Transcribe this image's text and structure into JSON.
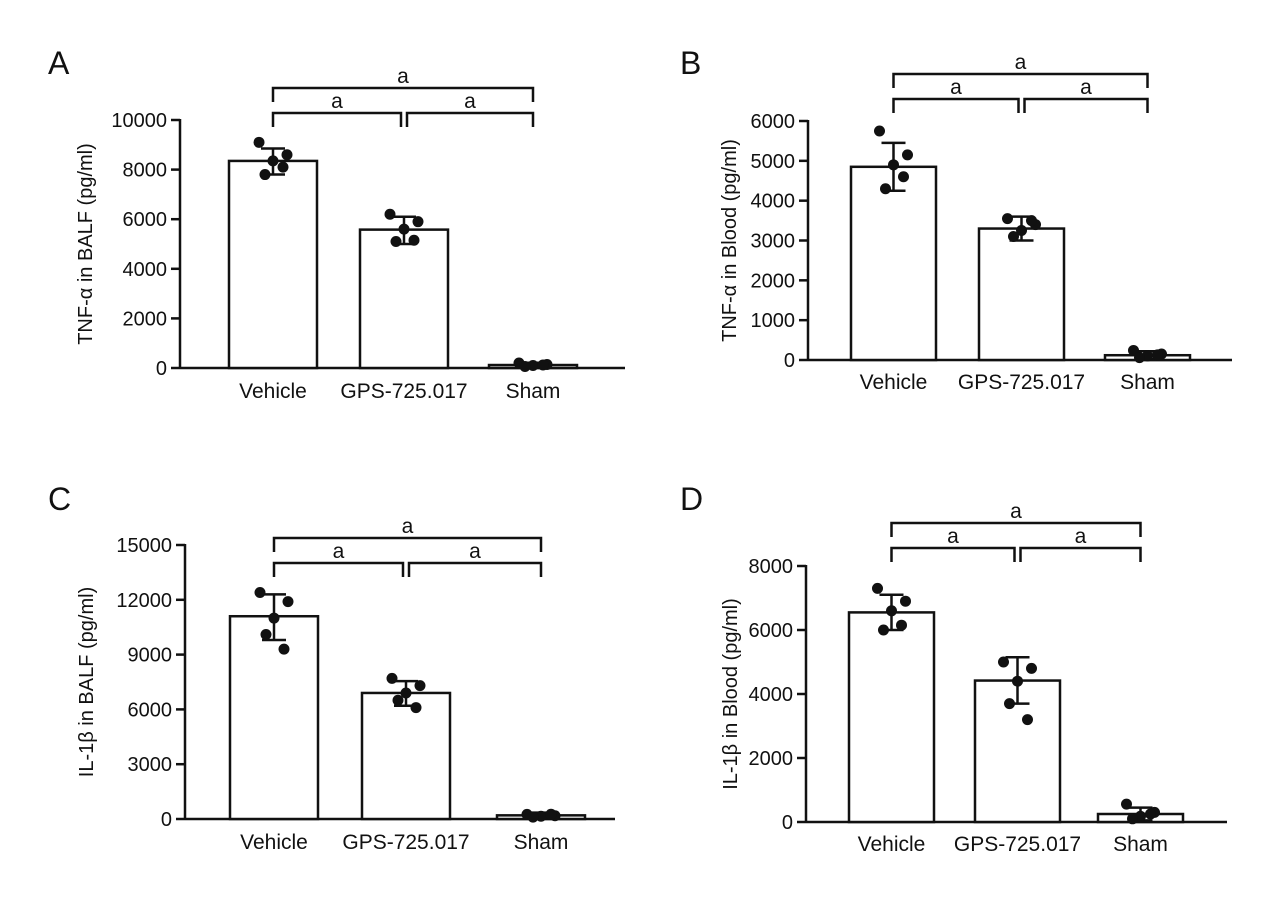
{
  "chart_data": [
    {
      "panel": "A",
      "type": "bar",
      "categories": [
        "Vehicle",
        "GPS-725.017",
        "Sham"
      ],
      "values": [
        8350,
        5580,
        120
      ],
      "error": [
        [
          7800,
          8850
        ],
        [
          5000,
          6100
        ],
        [
          30,
          210
        ]
      ],
      "points": [
        [
          9100,
          8600,
          8350,
          7800,
          8100
        ],
        [
          6200,
          5900,
          5600,
          5100,
          5150
        ],
        [
          200,
          140,
          100,
          60,
          120
        ]
      ],
      "ylabel": "TNF-α in BALF (pg/ml)",
      "ylim": [
        0,
        10000
      ],
      "yticks": [
        0,
        2000,
        4000,
        6000,
        8000,
        10000
      ],
      "annotations": [
        {
          "from": 0,
          "to": 1,
          "label": "a"
        },
        {
          "from": 1,
          "to": 2,
          "label": "a"
        },
        {
          "from": 0,
          "to": 2,
          "label": "a"
        }
      ]
    },
    {
      "panel": "B",
      "type": "bar",
      "categories": [
        "Vehicle",
        "GPS-725.017",
        "Sham"
      ],
      "values": [
        4850,
        3300,
        120
      ],
      "error": [
        [
          4250,
          5450
        ],
        [
          3000,
          3600
        ],
        [
          20,
          220
        ]
      ],
      "points": [
        [
          5750,
          5150,
          4900,
          4300,
          4600
        ],
        [
          3550,
          3400,
          3250,
          3100,
          3500
        ],
        [
          240,
          150,
          100,
          60,
          130
        ]
      ],
      "ylabel": "TNF-α in Blood (pg/ml)",
      "ylim": [
        0,
        6000
      ],
      "yticks": [
        0,
        1000,
        2000,
        3000,
        4000,
        5000,
        6000
      ],
      "annotations": [
        {
          "from": 0,
          "to": 1,
          "label": "a"
        },
        {
          "from": 1,
          "to": 2,
          "label": "a"
        },
        {
          "from": 0,
          "to": 2,
          "label": "a"
        }
      ]
    },
    {
      "panel": "C",
      "type": "bar",
      "categories": [
        "Vehicle",
        "GPS-725.017",
        "Sham"
      ],
      "values": [
        11100,
        6900,
        200
      ],
      "error": [
        [
          9800,
          12300
        ],
        [
          6200,
          7550
        ],
        [
          50,
          350
        ]
      ],
      "points": [
        [
          12400,
          11900,
          11000,
          10100,
          9300
        ],
        [
          7700,
          7300,
          6900,
          6500,
          6100
        ],
        [
          250,
          180,
          150,
          100,
          260
        ]
      ],
      "ylabel": "IL-1β in BALF (pg/ml)",
      "ylim": [
        0,
        15000
      ],
      "yticks": [
        0,
        3000,
        6000,
        9000,
        12000,
        15000
      ],
      "annotations": [
        {
          "from": 0,
          "to": 1,
          "label": "a"
        },
        {
          "from": 1,
          "to": 2,
          "label": "a"
        },
        {
          "from": 0,
          "to": 2,
          "label": "a"
        }
      ]
    },
    {
      "panel": "D",
      "type": "bar",
      "categories": [
        "Vehicle",
        "GPS-725.017",
        "Sham"
      ],
      "values": [
        6550,
        4420,
        250
      ],
      "error": [
        [
          6000,
          7100
        ],
        [
          3700,
          5150
        ],
        [
          50,
          450
        ]
      ],
      "points": [
        [
          7300,
          6900,
          6600,
          6000,
          6150
        ],
        [
          5000,
          4800,
          4400,
          3700,
          3200
        ],
        [
          560,
          300,
          180,
          100,
          250
        ]
      ],
      "ylabel": "IL-1β in Blood (pg/ml)",
      "ylim": [
        0,
        8000
      ],
      "yticks": [
        0,
        2000,
        4000,
        6000,
        8000
      ],
      "annotations": [
        {
          "from": 0,
          "to": 1,
          "label": "a"
        },
        {
          "from": 1,
          "to": 2,
          "label": "a"
        },
        {
          "from": 0,
          "to": 2,
          "label": "a"
        }
      ]
    }
  ]
}
